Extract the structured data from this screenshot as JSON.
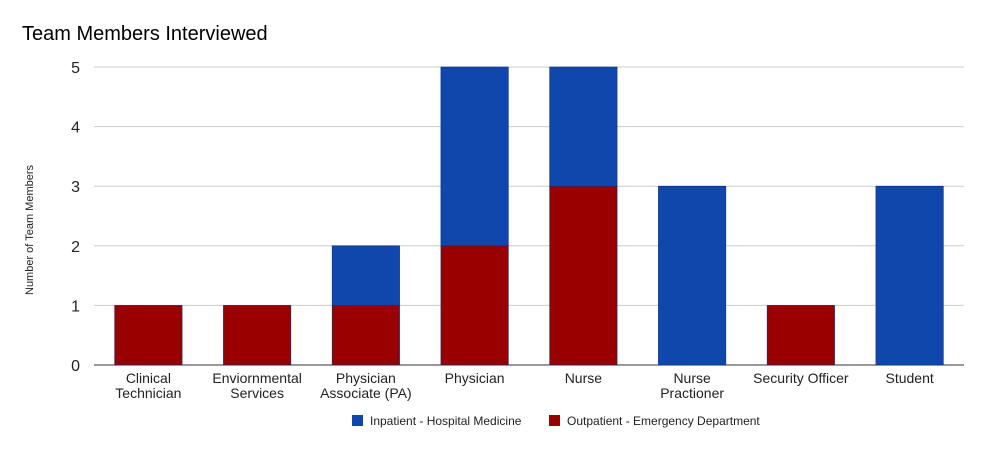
{
  "chart_data": {
    "type": "bar",
    "stacked": true,
    "title": "Team Members Interviewed",
    "xlabel": "",
    "ylabel": "Number of Team Members",
    "ylim": [
      0,
      5
    ],
    "yticks": [
      "0",
      "1",
      "2",
      "3",
      "4",
      "5"
    ],
    "grid": true,
    "legend_position": "bottom",
    "categories": [
      [
        "Clinical",
        "Technician"
      ],
      [
        "Enviornmental",
        "Services"
      ],
      [
        "Physician",
        "Associate (PA)"
      ],
      [
        "Physician"
      ],
      [
        "Nurse"
      ],
      [
        "Nurse",
        "Practioner"
      ],
      [
        "Security Officer"
      ],
      [
        "Student"
      ]
    ],
    "series": [
      {
        "name": "Outpatient - Emergency Department",
        "color": "#990000",
        "values": [
          1,
          1,
          1,
          2,
          3,
          0,
          1,
          0
        ]
      },
      {
        "name": "Inpatient - Hospital Medicine",
        "color": "#0f47ad",
        "values": [
          0,
          0,
          1,
          3,
          2,
          3,
          0,
          3
        ]
      }
    ],
    "legend_order": [
      1,
      0
    ]
  }
}
